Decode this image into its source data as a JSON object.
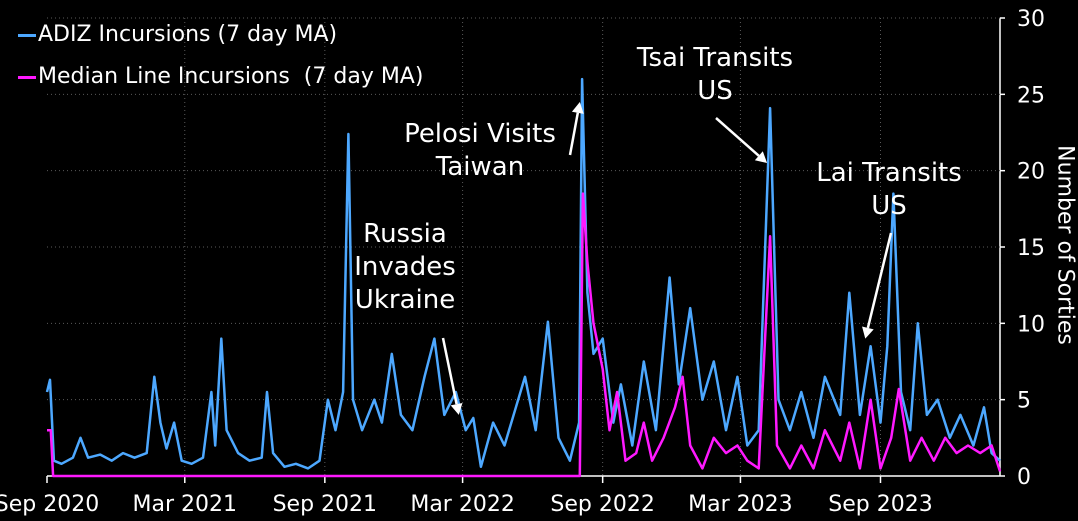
{
  "chart_data": {
    "type": "line",
    "ylabel": "Number of Sorties",
    "ylim": [
      0,
      30
    ],
    "y_ticks": [
      "0",
      "5",
      "10",
      "15",
      "20",
      "25",
      "30"
    ],
    "x_range": [
      "2020-09-01",
      "2024-02-05"
    ],
    "x_ticks": [
      {
        "date": "2020-09-01",
        "label": "Sep 2020"
      },
      {
        "date": "2021-03-01",
        "label": "Mar 2021"
      },
      {
        "date": "2021-09-01",
        "label": "Sep 2021"
      },
      {
        "date": "2022-03-01",
        "label": "Mar 2022"
      },
      {
        "date": "2022-09-01",
        "label": "Sep 2022"
      },
      {
        "date": "2023-03-01",
        "label": "Mar 2023"
      },
      {
        "date": "2023-09-01",
        "label": "Sep 2023"
      }
    ],
    "legend_position": "top-left",
    "series": [
      {
        "name": "ADIZ Incursions (7 day MA)",
        "color": "#4da8ff",
        "points": [
          [
            "2020-09-01",
            5.5
          ],
          [
            "2020-09-05",
            6.3
          ],
          [
            "2020-09-10",
            1.0
          ],
          [
            "2020-09-20",
            0.8
          ],
          [
            "2020-10-05",
            1.2
          ],
          [
            "2020-10-15",
            2.5
          ],
          [
            "2020-10-25",
            1.2
          ],
          [
            "2020-11-10",
            1.4
          ],
          [
            "2020-11-25",
            1.0
          ],
          [
            "2020-12-10",
            1.5
          ],
          [
            "2020-12-25",
            1.2
          ],
          [
            "2021-01-10",
            1.5
          ],
          [
            "2021-01-20",
            6.5
          ],
          [
            "2021-01-28",
            3.5
          ],
          [
            "2021-02-05",
            1.8
          ],
          [
            "2021-02-15",
            3.5
          ],
          [
            "2021-02-25",
            1.0
          ],
          [
            "2021-03-10",
            0.8
          ],
          [
            "2021-03-25",
            1.2
          ],
          [
            "2021-04-05",
            5.5
          ],
          [
            "2021-04-10",
            2.0
          ],
          [
            "2021-04-18",
            9.0
          ],
          [
            "2021-04-25",
            3.0
          ],
          [
            "2021-05-10",
            1.5
          ],
          [
            "2021-05-25",
            1.0
          ],
          [
            "2021-06-10",
            1.2
          ],
          [
            "2021-06-17",
            5.5
          ],
          [
            "2021-06-25",
            1.5
          ],
          [
            "2021-07-10",
            0.6
          ],
          [
            "2021-07-25",
            0.8
          ],
          [
            "2021-08-10",
            0.5
          ],
          [
            "2021-08-25",
            1.0
          ],
          [
            "2021-09-05",
            5.0
          ],
          [
            "2021-09-15",
            3.0
          ],
          [
            "2021-09-25",
            5.5
          ],
          [
            "2021-10-02",
            22.4
          ],
          [
            "2021-10-08",
            5.0
          ],
          [
            "2021-10-20",
            3.0
          ],
          [
            "2021-11-05",
            5.0
          ],
          [
            "2021-11-15",
            3.5
          ],
          [
            "2021-11-28",
            8.0
          ],
          [
            "2021-12-10",
            4.0
          ],
          [
            "2021-12-25",
            3.0
          ],
          [
            "2022-01-10",
            6.5
          ],
          [
            "2022-01-23",
            9.0
          ],
          [
            "2022-02-05",
            4.0
          ],
          [
            "2022-02-20",
            5.5
          ],
          [
            "2022-03-05",
            3.0
          ],
          [
            "2022-03-15",
            3.8
          ],
          [
            "2022-03-25",
            0.6
          ],
          [
            "2022-04-10",
            3.5
          ],
          [
            "2022-04-25",
            2.0
          ],
          [
            "2022-05-10",
            4.5
          ],
          [
            "2022-05-22",
            6.5
          ],
          [
            "2022-06-05",
            3.0
          ],
          [
            "2022-06-21",
            10.1
          ],
          [
            "2022-07-05",
            2.5
          ],
          [
            "2022-07-20",
            1.0
          ],
          [
            "2022-08-01",
            3.5
          ],
          [
            "2022-08-05",
            26.0
          ],
          [
            "2022-08-12",
            12.0
          ],
          [
            "2022-08-20",
            8.0
          ],
          [
            "2022-09-01",
            9.0
          ],
          [
            "2022-09-15",
            3.5
          ],
          [
            "2022-09-25",
            6.0
          ],
          [
            "2022-10-10",
            2.0
          ],
          [
            "2022-10-25",
            7.5
          ],
          [
            "2022-11-10",
            3.0
          ],
          [
            "2022-11-28",
            13.0
          ],
          [
            "2022-12-10",
            6.0
          ],
          [
            "2022-12-25",
            11.0
          ],
          [
            "2023-01-10",
            5.0
          ],
          [
            "2023-01-25",
            7.5
          ],
          [
            "2023-02-10",
            3.0
          ],
          [
            "2023-02-25",
            6.5
          ],
          [
            "2023-03-10",
            2.0
          ],
          [
            "2023-03-25",
            3.0
          ],
          [
            "2023-04-09",
            24.1
          ],
          [
            "2023-04-20",
            5.0
          ],
          [
            "2023-05-05",
            3.0
          ],
          [
            "2023-05-20",
            5.5
          ],
          [
            "2023-06-05",
            2.5
          ],
          [
            "2023-06-20",
            6.5
          ],
          [
            "2023-07-10",
            4.0
          ],
          [
            "2023-07-22",
            12.0
          ],
          [
            "2023-08-05",
            4.0
          ],
          [
            "2023-08-19",
            8.5
          ],
          [
            "2023-09-01",
            3.5
          ],
          [
            "2023-09-10",
            8.5
          ],
          [
            "2023-09-18",
            18.5
          ],
          [
            "2023-09-28",
            5.5
          ],
          [
            "2023-10-10",
            3.0
          ],
          [
            "2023-10-20",
            10.0
          ],
          [
            "2023-11-01",
            4.0
          ],
          [
            "2023-11-15",
            5.0
          ],
          [
            "2023-12-01",
            2.5
          ],
          [
            "2023-12-15",
            4.0
          ],
          [
            "2024-01-01",
            2.0
          ],
          [
            "2024-01-15",
            4.5
          ],
          [
            "2024-01-25",
            1.5
          ],
          [
            "2024-02-05",
            1.0
          ]
        ]
      },
      {
        "name": "Median Line Incursions  (7 day MA)",
        "color": "#ff19ff",
        "points": [
          [
            "2020-09-01",
            3.0
          ],
          [
            "2020-09-06",
            3.0
          ],
          [
            "2020-09-09",
            0.0
          ],
          [
            "2022-07-15",
            0.0
          ],
          [
            "2022-08-02",
            0.0
          ],
          [
            "2022-08-06",
            18.5
          ],
          [
            "2022-08-12",
            14.0
          ],
          [
            "2022-08-20",
            10.0
          ],
          [
            "2022-09-01",
            7.0
          ],
          [
            "2022-09-10",
            3.0
          ],
          [
            "2022-09-20",
            5.5
          ],
          [
            "2022-10-01",
            1.0
          ],
          [
            "2022-10-15",
            1.5
          ],
          [
            "2022-10-25",
            3.5
          ],
          [
            "2022-11-05",
            1.0
          ],
          [
            "2022-11-20",
            2.5
          ],
          [
            "2022-12-05",
            4.5
          ],
          [
            "2022-12-15",
            6.5
          ],
          [
            "2022-12-25",
            2.0
          ],
          [
            "2023-01-10",
            0.5
          ],
          [
            "2023-01-25",
            2.5
          ],
          [
            "2023-02-10",
            1.5
          ],
          [
            "2023-02-25",
            2.0
          ],
          [
            "2023-03-10",
            1.0
          ],
          [
            "2023-03-25",
            0.5
          ],
          [
            "2023-04-09",
            15.7
          ],
          [
            "2023-04-18",
            2.0
          ],
          [
            "2023-05-05",
            0.5
          ],
          [
            "2023-05-20",
            2.0
          ],
          [
            "2023-06-05",
            0.5
          ],
          [
            "2023-06-20",
            3.0
          ],
          [
            "2023-07-10",
            1.0
          ],
          [
            "2023-07-22",
            3.5
          ],
          [
            "2023-08-05",
            0.5
          ],
          [
            "2023-08-19",
            5.0
          ],
          [
            "2023-09-01",
            0.5
          ],
          [
            "2023-09-15",
            2.5
          ],
          [
            "2023-09-25",
            5.7
          ],
          [
            "2023-10-10",
            1.0
          ],
          [
            "2023-10-25",
            2.5
          ],
          [
            "2023-11-10",
            1.0
          ],
          [
            "2023-11-25",
            2.5
          ],
          [
            "2023-12-10",
            1.5
          ],
          [
            "2023-12-25",
            2.0
          ],
          [
            "2024-01-10",
            1.5
          ],
          [
            "2024-01-25",
            2.0
          ],
          [
            "2024-02-05",
            0.3
          ]
        ]
      }
    ],
    "annotations": [
      {
        "lines": [
          "Russia",
          "Invades",
          "Ukraine"
        ],
        "arrow_to": [
          "2022-02-24",
          4.0
        ]
      },
      {
        "lines": [
          "Pelosi Visits",
          "Taiwan"
        ],
        "arrow_to": [
          "2022-08-02",
          24.5
        ]
      },
      {
        "lines": [
          "Tsai Transits",
          "US"
        ],
        "arrow_to": [
          "2023-04-05",
          20.5
        ]
      },
      {
        "lines": [
          "Lai Transits",
          "US"
        ],
        "arrow_to": [
          "2023-08-12",
          9.0
        ]
      }
    ]
  }
}
